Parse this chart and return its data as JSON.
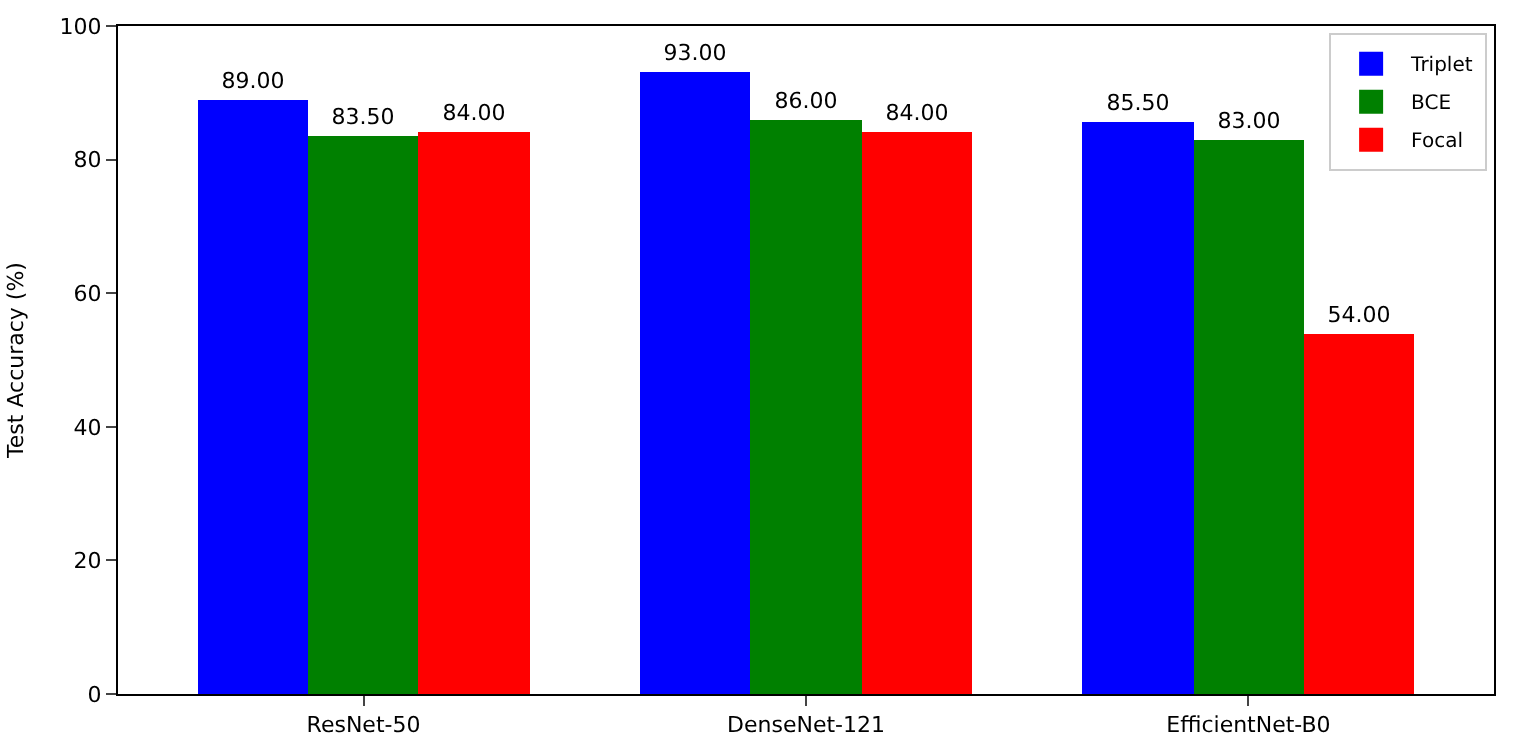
{
  "chart_data": {
    "type": "bar",
    "ylabel": "Test Accuracy (%)",
    "categories": [
      "ResNet-50",
      "DenseNet-121",
      "EfficientNet-B0"
    ],
    "series": [
      {
        "name": "Triplet",
        "color": "#0000ff",
        "values": [
          89.0,
          93.0,
          85.5
        ],
        "value_labels": [
          "89.00",
          "93.00",
          "85.50"
        ]
      },
      {
        "name": "BCE",
        "color": "#008000",
        "values": [
          83.5,
          86.0,
          83.0
        ],
        "value_labels": [
          "83.50",
          "86.00",
          "83.00"
        ]
      },
      {
        "name": "Focal",
        "color": "#ff0000",
        "values": [
          84.0,
          84.0,
          54.0
        ],
        "value_labels": [
          "84.00",
          "84.00",
          "54.00"
        ]
      }
    ],
    "ylim": [
      0,
      100
    ],
    "yticks": [
      0,
      20,
      40,
      60,
      80,
      100
    ],
    "legend": "top right"
  }
}
